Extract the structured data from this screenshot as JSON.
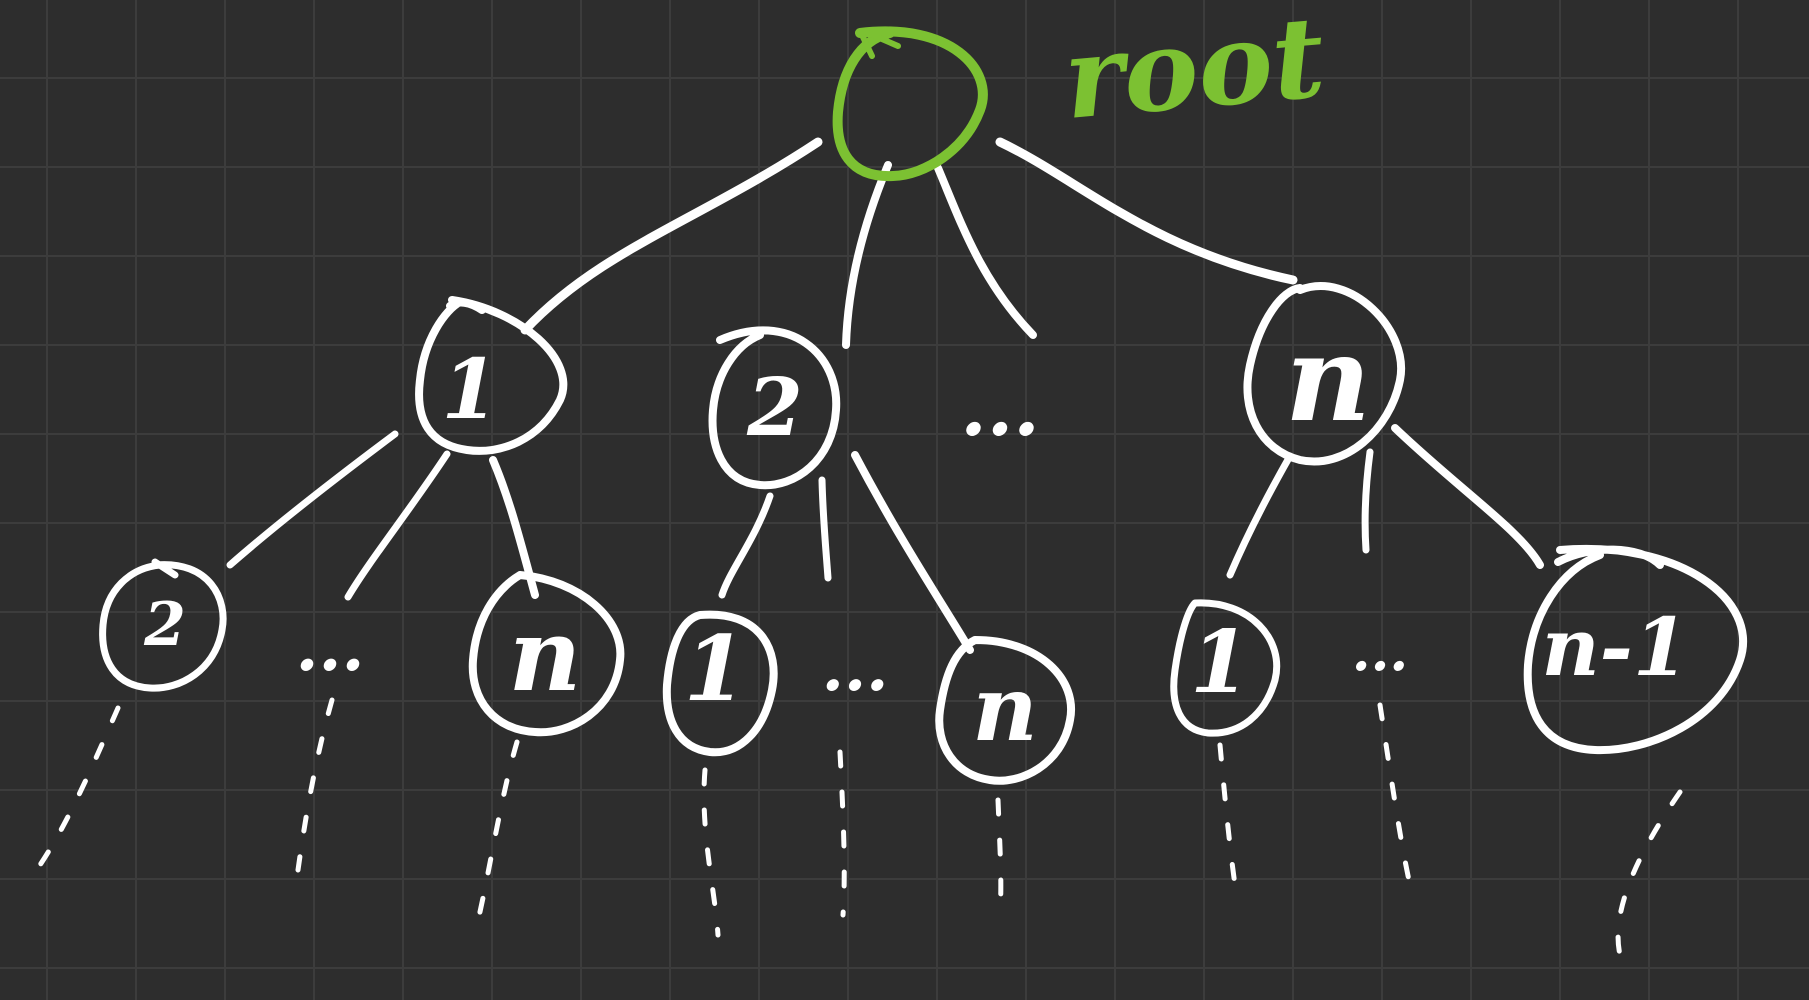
{
  "colors": {
    "background": "#2d2d2d",
    "grid": "#3c3c3c",
    "ink": "#ffffff",
    "root": "#7cc132"
  },
  "root": {
    "label": "root"
  },
  "level1": {
    "node_1": "1",
    "node_2": "2",
    "ellipsis": "...",
    "node_n": "n"
  },
  "level2": {
    "a_first": "2",
    "a_ellipsis": "...",
    "a_last": "n",
    "b_first": "1",
    "b_ellipsis": "...",
    "b_last": "n",
    "c_first": "1",
    "c_ellipsis": "...",
    "c_last": "n-1"
  }
}
